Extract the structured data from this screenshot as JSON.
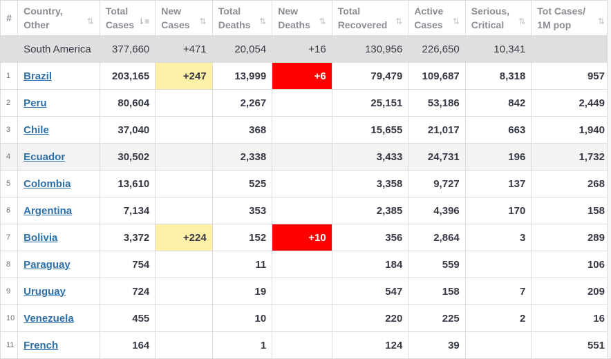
{
  "headers": [
    {
      "key": "idx",
      "line1": "#",
      "line2": "",
      "sort": ""
    },
    {
      "key": "country",
      "line1": "Country,",
      "line2": "Other",
      "sort": "⇅"
    },
    {
      "key": "total_cases",
      "line1": "Total",
      "line2": "Cases",
      "sort": "⇂≡"
    },
    {
      "key": "new_cases",
      "line1": "New",
      "line2": "Cases",
      "sort": "⇅"
    },
    {
      "key": "total_deaths",
      "line1": "Total",
      "line2": "Deaths",
      "sort": "⇅"
    },
    {
      "key": "new_deaths",
      "line1": "New",
      "line2": "Deaths",
      "sort": "⇅"
    },
    {
      "key": "total_recovered",
      "line1": "Total",
      "line2": "Recovered",
      "sort": "⇅"
    },
    {
      "key": "active_cases",
      "line1": "Active",
      "line2": "Cases",
      "sort": "⇅"
    },
    {
      "key": "serious",
      "line1": "Serious,",
      "line2": "Critical",
      "sort": "⇅"
    },
    {
      "key": "per_million",
      "line1": "Tot Cases/",
      "line2": "1M pop",
      "sort": "⇅"
    }
  ],
  "summary": {
    "idx": "",
    "country": "South America",
    "total_cases": "377,660",
    "new_cases": "+471",
    "total_deaths": "20,054",
    "new_deaths": "+16",
    "total_recovered": "130,956",
    "active_cases": "226,650",
    "serious": "10,341",
    "per_million": ""
  },
  "rows": [
    {
      "idx": "1",
      "country": "Brazil",
      "total_cases": "203,165",
      "new_cases": "+247",
      "total_deaths": "13,999",
      "new_deaths": "+6",
      "total_recovered": "79,479",
      "active_cases": "109,687",
      "serious": "8,318",
      "per_million": "957"
    },
    {
      "idx": "2",
      "country": "Peru",
      "total_cases": "80,604",
      "new_cases": "",
      "total_deaths": "2,267",
      "new_deaths": "",
      "total_recovered": "25,151",
      "active_cases": "53,186",
      "serious": "842",
      "per_million": "2,449"
    },
    {
      "idx": "3",
      "country": "Chile",
      "total_cases": "37,040",
      "new_cases": "",
      "total_deaths": "368",
      "new_deaths": "",
      "total_recovered": "15,655",
      "active_cases": "21,017",
      "serious": "663",
      "per_million": "1,940"
    },
    {
      "idx": "4",
      "country": "Ecuador",
      "total_cases": "30,502",
      "new_cases": "",
      "total_deaths": "2,338",
      "new_deaths": "",
      "total_recovered": "3,433",
      "active_cases": "24,731",
      "serious": "196",
      "per_million": "1,732"
    },
    {
      "idx": "5",
      "country": "Colombia",
      "total_cases": "13,610",
      "new_cases": "",
      "total_deaths": "525",
      "new_deaths": "",
      "total_recovered": "3,358",
      "active_cases": "9,727",
      "serious": "137",
      "per_million": "268"
    },
    {
      "idx": "6",
      "country": "Argentina",
      "total_cases": "7,134",
      "new_cases": "",
      "total_deaths": "353",
      "new_deaths": "",
      "total_recovered": "2,385",
      "active_cases": "4,396",
      "serious": "170",
      "per_million": "158"
    },
    {
      "idx": "7",
      "country": "Bolivia",
      "total_cases": "3,372",
      "new_cases": "+224",
      "total_deaths": "152",
      "new_deaths": "+10",
      "total_recovered": "356",
      "active_cases": "2,864",
      "serious": "3",
      "per_million": "289"
    },
    {
      "idx": "8",
      "country": "Paraguay",
      "total_cases": "754",
      "new_cases": "",
      "total_deaths": "11",
      "new_deaths": "",
      "total_recovered": "184",
      "active_cases": "559",
      "serious": "",
      "per_million": "106"
    },
    {
      "idx": "9",
      "country": "Uruguay",
      "total_cases": "724",
      "new_cases": "",
      "total_deaths": "19",
      "new_deaths": "",
      "total_recovered": "547",
      "active_cases": "158",
      "serious": "7",
      "per_million": "209"
    },
    {
      "idx": "10",
      "country": "Venezuela",
      "total_cases": "455",
      "new_cases": "",
      "total_deaths": "10",
      "new_deaths": "",
      "total_recovered": "220",
      "active_cases": "225",
      "serious": "2",
      "per_million": "16"
    },
    {
      "idx": "11",
      "country": "French",
      "total_cases": "164",
      "new_cases": "",
      "total_deaths": "1",
      "new_deaths": "",
      "total_recovered": "124",
      "active_cases": "39",
      "serious": "",
      "per_million": "551"
    }
  ],
  "colors": {
    "new_cases_highlight": "#fff0a8",
    "new_deaths_highlight": "#ff0000",
    "summary_row": "#dfdfdf",
    "link": "#2d6fa8"
  }
}
